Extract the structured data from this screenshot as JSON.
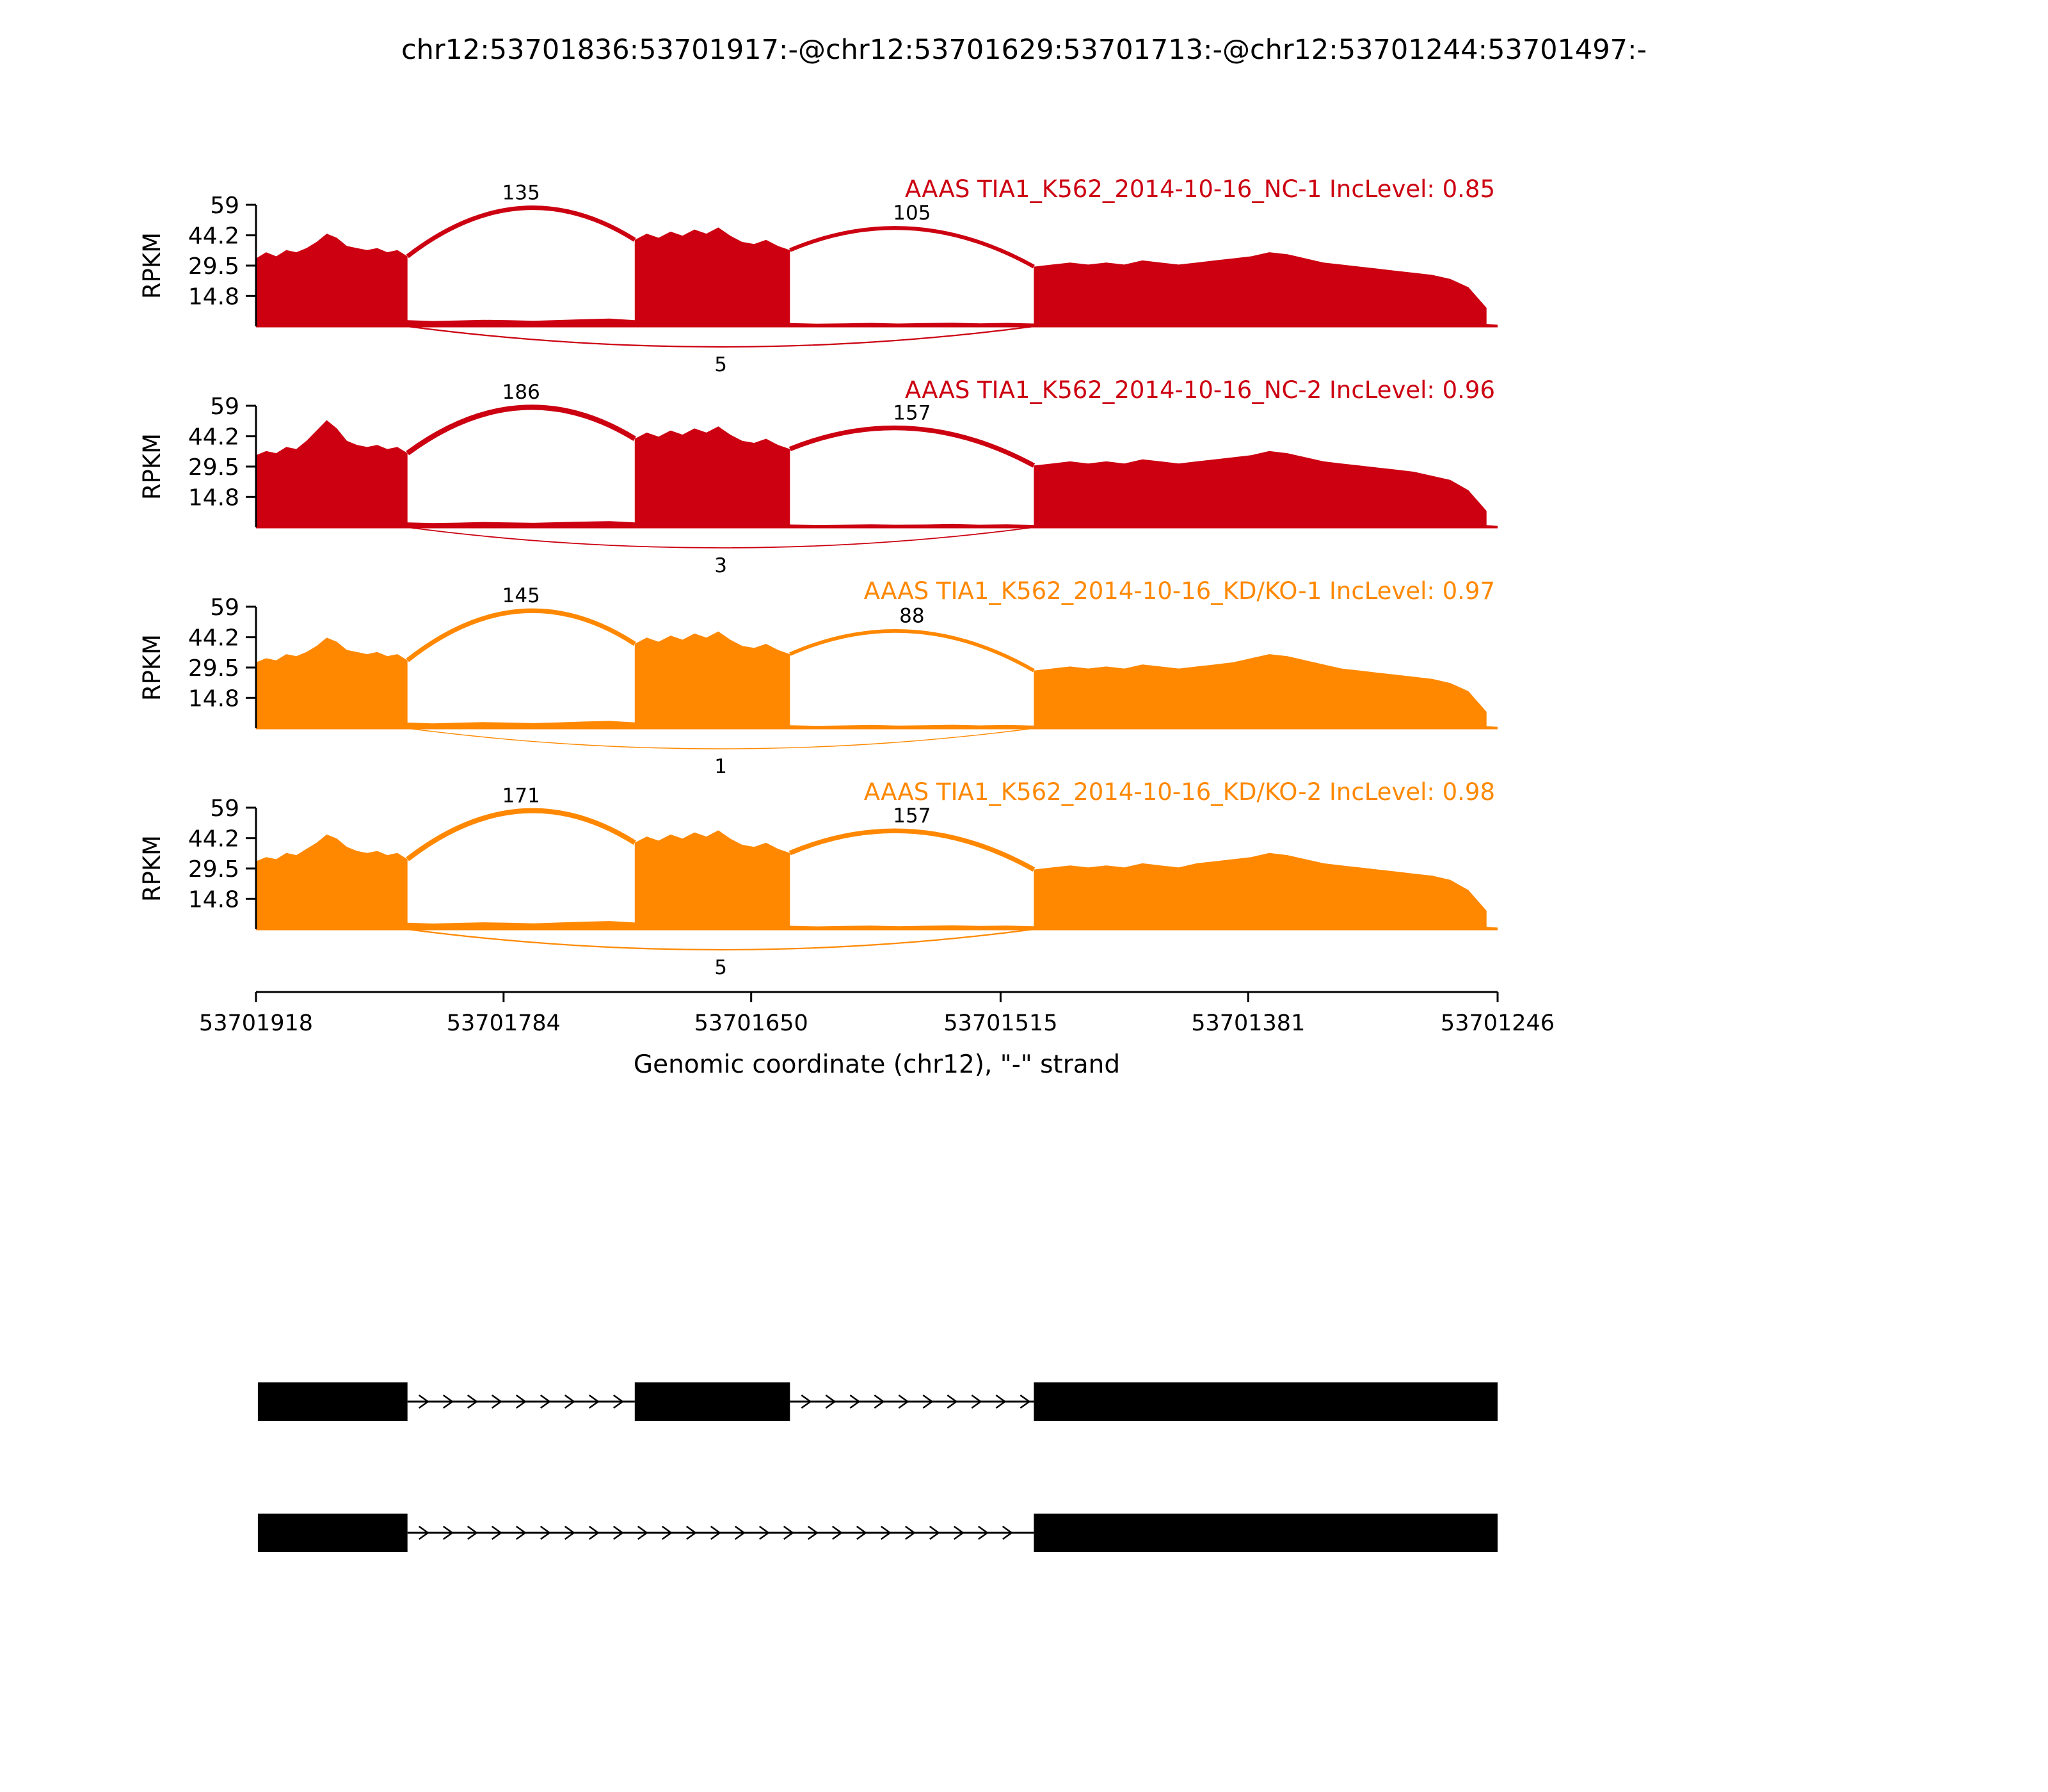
{
  "chart_data": {
    "type": "area",
    "subtype": "sashimi-coverage-plot",
    "title": "chr12:53701836:53701917:-@chr12:53701629:53701713:-@chr12:53701244:53701497:-",
    "axis": {
      "ylabel": "RPKM",
      "yticks": [
        59,
        44.2,
        29.5,
        14.8
      ],
      "ymax": 59,
      "xticks": [
        "53701918",
        "53701784",
        "53701650",
        "53701515",
        "53701381",
        "53701246"
      ],
      "xlabel": "Genomic coordinate (chr12), \"-\" strand",
      "x_start": 53701918,
      "x_end": 53701246,
      "grid": false
    },
    "colors": {
      "negative_control": "#CC0011",
      "knockdown": "#FF8800",
      "text": "#000000"
    },
    "layout": {
      "plot_left": 400,
      "plot_right": 2340,
      "axis_height": 190,
      "baselines": [
        510,
        824,
        1138,
        1452
      ],
      "xaxis_y": 1550,
      "transcript_y": [
        2190,
        2395
      ],
      "legend": "none"
    },
    "tracks": [
      {
        "label": "AAAS TIA1_K562_2014-10-16_NC-1 IncLevel: 0.85",
        "sample": "TIA1_K562_2014-10-16_NC-1",
        "gene": "AAAS",
        "inc_level": 0.85,
        "color": "#CC0011",
        "junctions": [
          {
            "x1": 53701836,
            "x2": 53701713,
            "count": 135,
            "side": "top",
            "peak": 1.3,
            "w": 6.9
          },
          {
            "x1": 53701629,
            "x2": 53701497,
            "count": 105,
            "side": "top",
            "peak": 1.05,
            "w": 6.1
          },
          {
            "x1": 53701836,
            "x2": 53701497,
            "count": 5,
            "side": "bottom",
            "w": 2.2
          }
        ],
        "coverage": [
          {
            "start": 53701918,
            "end": 53701836,
            "heights": [
              33,
              36,
              34,
              37,
              36,
              38,
              41,
              45,
              43,
              39,
              38,
              37,
              38,
              36,
              37,
              34
            ]
          },
          {
            "start": 53701836,
            "end": 53701713,
            "heights": [
              3.0,
              2.6,
              2.9,
              3.2,
              3.0,
              2.7,
              3.1,
              3.5,
              3.8,
              3.0
            ]
          },
          {
            "start": 53701713,
            "end": 53701629,
            "heights": [
              42,
              45,
              43,
              46,
              44,
              47,
              45,
              48,
              44,
              41,
              40,
              42,
              39,
              37
            ]
          },
          {
            "start": 53701629,
            "end": 53701497,
            "heights": [
              1.6,
              1.3,
              1.5,
              1.7,
              1.4,
              1.6,
              1.8,
              1.5,
              1.7,
              1.4
            ]
          },
          {
            "start": 53701497,
            "end": 53701252,
            "heights": [
              29,
              30,
              31,
              30,
              31,
              30,
              32,
              31,
              30,
              31,
              32,
              33,
              34,
              36,
              35,
              33,
              31,
              30,
              29,
              28,
              27,
              26,
              25,
              23,
              19,
              9
            ]
          },
          {
            "start": 53701252,
            "end": 53701246,
            "heights": [
              1.2,
              1.0,
              0.8
            ]
          }
        ]
      },
      {
        "label": "AAAS TIA1_K562_2014-10-16_NC-2 IncLevel: 0.96",
        "sample": "TIA1_K562_2014-10-16_NC-2",
        "gene": "AAAS",
        "inc_level": 0.96,
        "color": "#CC0011",
        "junctions": [
          {
            "x1": 53701836,
            "x2": 53701713,
            "count": 186,
            "side": "top",
            "peak": 1.3,
            "w": 8.2
          },
          {
            "x1": 53701629,
            "x2": 53701497,
            "count": 157,
            "side": "top",
            "peak": 1.05,
            "w": 7.4
          },
          {
            "x1": 53701836,
            "x2": 53701497,
            "count": 3,
            "side": "bottom",
            "w": 1.8
          }
        ],
        "coverage": [
          {
            "start": 53701918,
            "end": 53701836,
            "heights": [
              35,
              37,
              36,
              39,
              38,
              42,
              47,
              52,
              48,
              42,
              40,
              39,
              40,
              38,
              39,
              36
            ]
          },
          {
            "start": 53701836,
            "end": 53701713,
            "heights": [
              2.4,
              2.1,
              2.3,
              2.6,
              2.4,
              2.2,
              2.5,
              2.8,
              3.0,
              2.4
            ]
          },
          {
            "start": 53701713,
            "end": 53701629,
            "heights": [
              43,
              46,
              44,
              47,
              45,
              48,
              46,
              49,
              45,
              42,
              41,
              43,
              40,
              38
            ]
          },
          {
            "start": 53701629,
            "end": 53701497,
            "heights": [
              1.4,
              1.2,
              1.3,
              1.5,
              1.3,
              1.4,
              1.6,
              1.3,
              1.5,
              1.2
            ]
          },
          {
            "start": 53701497,
            "end": 53701252,
            "heights": [
              30,
              31,
              32,
              31,
              32,
              31,
              33,
              32,
              31,
              32,
              33,
              34,
              35,
              37,
              36,
              34,
              32,
              31,
              30,
              29,
              28,
              27,
              25,
              23,
              18,
              8
            ]
          },
          {
            "start": 53701252,
            "end": 53701246,
            "heights": [
              1.1,
              0.9,
              0.7
            ]
          }
        ]
      },
      {
        "label": "AAAS TIA1_K562_2014-10-16_KD/KO-1 IncLevel: 0.97",
        "sample": "TIA1_K562_2014-10-16_KD/KO-1",
        "gene": "AAAS",
        "inc_level": 0.97,
        "color": "#FF8800",
        "junctions": [
          {
            "x1": 53701836,
            "x2": 53701713,
            "count": 145,
            "side": "top",
            "peak": 1.3,
            "w": 7.1
          },
          {
            "x1": 53701629,
            "x2": 53701497,
            "count": 88,
            "side": "top",
            "peak": 1.05,
            "w": 5.7
          },
          {
            "x1": 53701836,
            "x2": 53701497,
            "count": 1,
            "side": "bottom",
            "w": 1.4
          }
        ],
        "coverage": [
          {
            "start": 53701918,
            "end": 53701836,
            "heights": [
              32,
              34,
              33,
              36,
              35,
              37,
              40,
              44,
              42,
              38,
              37,
              36,
              37,
              35,
              36,
              33
            ]
          },
          {
            "start": 53701836,
            "end": 53701713,
            "heights": [
              2.8,
              2.4,
              2.7,
              3.0,
              2.8,
              2.5,
              2.9,
              3.3,
              3.6,
              2.9
            ]
          },
          {
            "start": 53701713,
            "end": 53701629,
            "heights": [
              41,
              44,
              42,
              45,
              43,
              46,
              44,
              47,
              43,
              40,
              39,
              41,
              38,
              36
            ]
          },
          {
            "start": 53701629,
            "end": 53701497,
            "heights": [
              1.5,
              1.2,
              1.4,
              1.6,
              1.3,
              1.5,
              1.7,
              1.4,
              1.6,
              1.3
            ]
          },
          {
            "start": 53701497,
            "end": 53701252,
            "heights": [
              28,
              29,
              30,
              29,
              30,
              29,
              31,
              30,
              29,
              30,
              31,
              32,
              34,
              36,
              35,
              33,
              31,
              29,
              28,
              27,
              26,
              25,
              24,
              22,
              18,
              8
            ]
          },
          {
            "start": 53701252,
            "end": 53701246,
            "heights": [
              1.0,
              0.9,
              0.7
            ]
          }
        ]
      },
      {
        "label": "AAAS TIA1_K562_2014-10-16_KD/KO-2 IncLevel: 0.98",
        "sample": "TIA1_K562_2014-10-16_KD/KO-2",
        "gene": "AAAS",
        "inc_level": 0.98,
        "color": "#FF8800",
        "junctions": [
          {
            "x1": 53701836,
            "x2": 53701713,
            "count": 171,
            "side": "top",
            "peak": 1.3,
            "w": 7.8
          },
          {
            "x1": 53701629,
            "x2": 53701497,
            "count": 157,
            "side": "top",
            "peak": 1.05,
            "w": 7.4
          },
          {
            "x1": 53701836,
            "x2": 53701497,
            "count": 5,
            "side": "bottom",
            "w": 2.2
          }
        ],
        "coverage": [
          {
            "start": 53701918,
            "end": 53701836,
            "heights": [
              33,
              35,
              34,
              37,
              36,
              39,
              42,
              46,
              44,
              40,
              38,
              37,
              38,
              36,
              37,
              34
            ]
          },
          {
            "start": 53701836,
            "end": 53701713,
            "heights": [
              3.2,
              2.8,
              3.1,
              3.4,
              3.2,
              2.9,
              3.3,
              3.7,
              4.0,
              3.3
            ]
          },
          {
            "start": 53701713,
            "end": 53701629,
            "heights": [
              42,
              45,
              43,
              46,
              44,
              47,
              45,
              48,
              44,
              41,
              40,
              42,
              39,
              37
            ]
          },
          {
            "start": 53701629,
            "end": 53701497,
            "heights": [
              1.7,
              1.4,
              1.6,
              1.8,
              1.5,
              1.7,
              1.9,
              1.6,
              1.8,
              1.5
            ]
          },
          {
            "start": 53701497,
            "end": 53701252,
            "heights": [
              29,
              30,
              31,
              30,
              31,
              30,
              32,
              31,
              30,
              32,
              33,
              34,
              35,
              37,
              36,
              34,
              32,
              31,
              30,
              29,
              28,
              27,
              26,
              24,
              19,
              9
            ]
          },
          {
            "start": 53701252,
            "end": 53701246,
            "heights": [
              1.2,
              1.0,
              0.8
            ]
          }
        ]
      }
    ],
    "transcripts": [
      {
        "exons": [
          [
            53701917,
            53701836
          ],
          [
            53701713,
            53701629
          ],
          [
            53701497,
            53701244
          ]
        ]
      },
      {
        "exons": [
          [
            53701917,
            53701836
          ],
          [
            53701497,
            53701244
          ]
        ]
      }
    ]
  }
}
